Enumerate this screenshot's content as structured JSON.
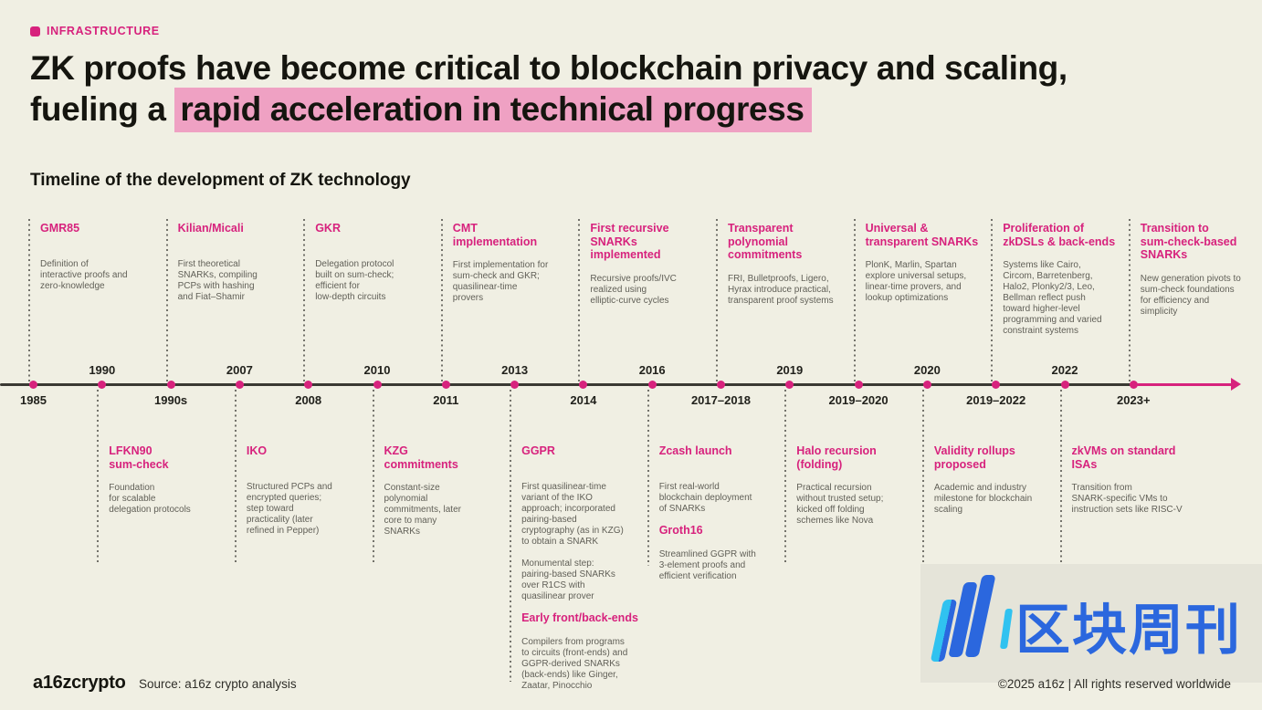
{
  "page": {
    "background": "#f0efe3",
    "accent": "#d7227d",
    "highlight": "#efa1c3",
    "watermark_blue": "#2b67de",
    "watermark_cyan": "#30c2f0"
  },
  "tag": {
    "label": "INFRASTRUCTURE"
  },
  "title": {
    "line1": "ZK proofs have become critical to blockchain privacy and scaling,",
    "line2_prefix": "fueling a ",
    "line2_highlight": "rapid acceleration in technical progress"
  },
  "subtitle": "Timeline of the development of ZK technology",
  "timeline": {
    "years_below": [
      "1985",
      "1990s",
      "2008",
      "2011",
      "2014",
      "2017–2018",
      "2019–2020",
      "2019–2022",
      "2023+"
    ],
    "years_above": [
      "1990",
      "2007",
      "2010",
      "2013",
      "2016",
      "2019",
      "2020",
      "2022"
    ],
    "top_entries": [
      {
        "year": "1985",
        "sections": [
          {
            "heading": "GMR85",
            "body": "Definition of\ninteractive proofs and\nzero-knowledge"
          }
        ]
      },
      {
        "year": "1990s",
        "sections": [
          {
            "heading": "Kilian/Micali",
            "body": "First theoretical\nSNARKs, compiling\nPCPs with hashing\nand Fiat–Shamir"
          }
        ]
      },
      {
        "year": "2008",
        "sections": [
          {
            "heading": "GKR",
            "body": "Delegation protocol\nbuilt on sum-check;\nefficient for\nlow-depth circuits"
          }
        ]
      },
      {
        "year": "2011",
        "sections": [
          {
            "heading": "CMT\nimplementation",
            "body": "First implementation for\nsum-check and GKR;\nquasilinear-time\nprovers"
          }
        ]
      },
      {
        "year": "2014",
        "sections": [
          {
            "heading": "First recursive\nSNARKs\nimplemented",
            "body": "Recursive proofs/IVC\nrealized using\nelliptic-curve cycles"
          }
        ]
      },
      {
        "year": "2017–2018",
        "sections": [
          {
            "heading": "Transparent\npolynomial\ncommitments",
            "body": "FRI, Bulletproofs, Ligero,\nHyrax introduce practical,\ntransparent proof systems"
          }
        ]
      },
      {
        "year": "2019–2020",
        "sections": [
          {
            "heading": "Universal &\ntransparent SNARKs",
            "body": "PlonK, Marlin, Spartan\nexplore universal setups,\nlinear-time provers, and\nlookup optimizations"
          }
        ]
      },
      {
        "year": "2019–2022",
        "sections": [
          {
            "heading": "Proliferation of\nzkDSLs & back-ends",
            "body": "Systems like Cairo,\nCircom, Barretenberg,\nHalo2, Plonky2/3, Leo,\nBellman reflect push\ntoward higher-level\nprogramming and varied\nconstraint systems"
          }
        ]
      },
      {
        "year": "2023+",
        "sections": [
          {
            "heading": "Transition to\nsum-check-based\nSNARKs",
            "body": "New generation pivots to\nsum-check foundations\nfor efficiency and\nsimplicity"
          }
        ]
      }
    ],
    "bottom_entries": [
      {
        "year": "1990",
        "sections": [
          {
            "heading": "LFKN90\nsum-check",
            "body": "Foundation\nfor scalable\ndelegation protocols"
          }
        ]
      },
      {
        "year": "2007",
        "sections": [
          {
            "heading": "IKO",
            "body": "Structured PCPs and\nencrypted queries;\nstep toward\npracticality (later\nrefined in Pepper)"
          }
        ]
      },
      {
        "year": "2010",
        "sections": [
          {
            "heading": "KZG\ncommitments",
            "body": "Constant-size\npolynomial\ncommitments, later\ncore to many\nSNARKs"
          }
        ]
      },
      {
        "year": "2013",
        "sections": [
          {
            "heading": "GGPR",
            "body": "First quasilinear-time\nvariant of the IKO\napproach; incorporated\npairing-based\ncryptography (as in KZG)\nto obtain a SNARK\n\nMonumental step:\npairing-based SNARKs\nover R1CS with\nquasilinear prover"
          },
          {
            "heading": "Early front/back-ends",
            "body": "Compilers from programs\nto circuits (front-ends) and\nGGPR-derived SNARKs\n(back-ends) like Ginger,\nZaatar, Pinocchio"
          }
        ]
      },
      {
        "year": "2016",
        "sections": [
          {
            "heading": "Zcash launch",
            "body": "First real-world\nblockchain deployment\nof SNARKs"
          },
          {
            "heading": "Groth16",
            "body": "Streamlined GGPR with\n3-element proofs and\nefficient verification"
          }
        ]
      },
      {
        "year": "2019",
        "sections": [
          {
            "heading": "Halo recursion\n(folding)",
            "body": "Practical recursion\nwithout trusted setup;\nkicked off folding\nschemes like Nova"
          }
        ]
      },
      {
        "year": "2020",
        "sections": [
          {
            "heading": "Validity rollups\nproposed",
            "body": "Academic and industry\nmilestone for blockchain\nscaling"
          }
        ]
      },
      {
        "year": "2022",
        "sections": [
          {
            "heading": "zkVMs on standard\nISAs",
            "body": "Transition from\nSNARK-specific VMs to\ninstruction sets like RISC-V"
          }
        ]
      }
    ]
  },
  "footer": {
    "logo": "a16zcrypto",
    "source": "Source: a16z crypto analysis",
    "copyright": "©2025 a16z | All rights reserved worldwide"
  },
  "watermark": {
    "text": "区块周刊"
  }
}
